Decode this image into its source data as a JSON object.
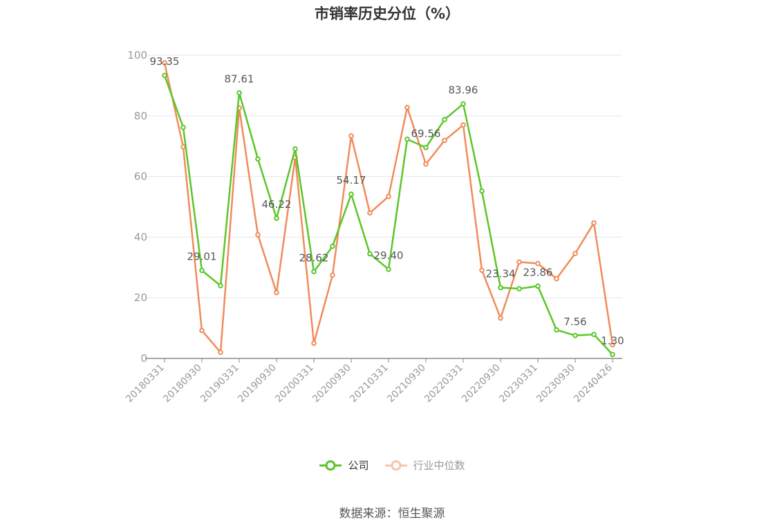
{
  "chart_data": {
    "type": "line",
    "title": "市销率历史分位（%）",
    "ylim": [
      0,
      100
    ],
    "yticks": [
      0,
      20,
      40,
      60,
      80,
      100
    ],
    "grid": true,
    "legend_position": "bottom",
    "x_tick_labels": [
      "20180331",
      "20180930",
      "20190331",
      "20190930",
      "20200331",
      "20200930",
      "20210331",
      "20210930",
      "20220331",
      "20220930",
      "20230331",
      "20230930",
      "20240426"
    ],
    "x": [
      "20180331",
      "20180630",
      "20180930",
      "20181231",
      "20190331",
      "20190630",
      "20190930",
      "20191231",
      "20200331",
      "20200630",
      "20200930",
      "20201231",
      "20210331",
      "20210630",
      "20210930",
      "20211231",
      "20220331",
      "20220630",
      "20220930",
      "20221231",
      "20230331",
      "20230630",
      "20230930",
      "20231231",
      "20240426"
    ],
    "series": [
      {
        "name": "公司",
        "color": "#5ac626",
        "values": [
          93.35,
          76.2,
          29.01,
          24.0,
          87.61,
          65.8,
          46.22,
          69.1,
          28.62,
          37.0,
          54.17,
          34.5,
          29.4,
          72.3,
          69.56,
          78.8,
          83.96,
          55.2,
          23.34,
          23.0,
          23.86,
          9.4,
          7.56,
          7.9,
          1.3
        ],
        "labels": [
          "93.35",
          "",
          "29.01",
          "",
          "87.61",
          "",
          "46.22",
          "",
          "28.62",
          "",
          "54.17",
          "",
          "29.40",
          "",
          "69.56",
          "",
          "83.96",
          "",
          "23.34",
          "",
          "23.86",
          "",
          "7.56",
          "",
          "1.30"
        ]
      },
      {
        "name": "行业中位数",
        "color": "#f08b5a",
        "values": [
          97.5,
          69.8,
          9.2,
          2.0,
          82.6,
          40.8,
          21.7,
          66.3,
          5.0,
          27.5,
          73.4,
          48.0,
          53.4,
          82.8,
          64.1,
          71.9,
          77.0,
          29.1,
          13.3,
          31.8,
          31.3,
          26.3,
          34.6,
          44.7,
          4.5
        ],
        "labels": []
      }
    ]
  },
  "source": "数据来源：恒生聚源"
}
